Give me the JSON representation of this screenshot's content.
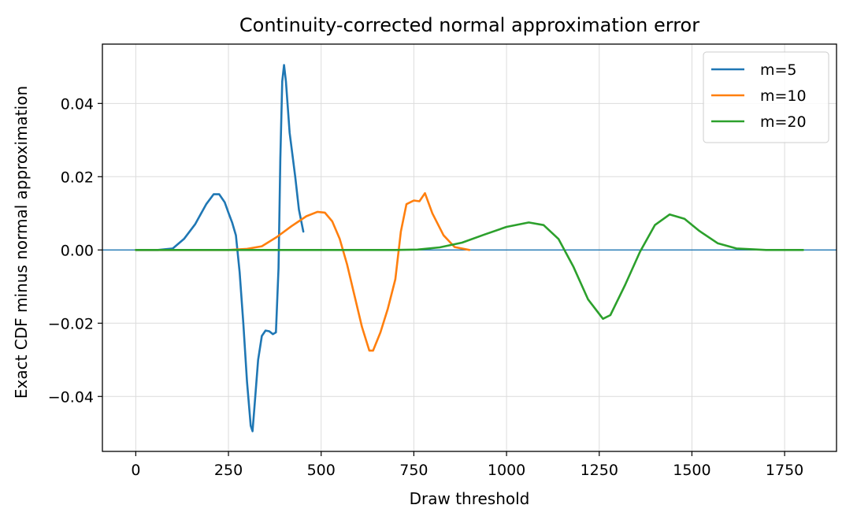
{
  "chart_data": {
    "type": "line",
    "title": "Continuity-corrected normal approximation error",
    "xlabel": "Draw threshold",
    "ylabel": "Exact CDF minus normal approximation",
    "xlim": [
      -90,
      1890
    ],
    "ylim": [
      -0.055,
      0.0562
    ],
    "xticks": [
      0,
      250,
      500,
      750,
      1000,
      1250,
      1500,
      1750
    ],
    "xtick_labels": [
      "0",
      "250",
      "500",
      "750",
      "1000",
      "1250",
      "1500",
      "1750"
    ],
    "yticks": [
      -0.04,
      -0.02,
      0.0,
      0.02,
      0.04
    ],
    "ytick_labels": [
      "−0.04",
      "−0.02",
      "0.00",
      "0.02",
      "0.04"
    ],
    "grid": true,
    "legend_position": "top-right",
    "reference_line": {
      "y": 0,
      "color": "#1f77b4"
    },
    "series": [
      {
        "name": "m=5",
        "color": "#1f77b4",
        "points": [
          [
            0,
            0
          ],
          [
            60,
            0
          ],
          [
            100,
            0.0004
          ],
          [
            130,
            0.003
          ],
          [
            160,
            0.007
          ],
          [
            190,
            0.0125
          ],
          [
            210,
            0.0152
          ],
          [
            225,
            0.0152
          ],
          [
            240,
            0.013
          ],
          [
            250,
            0.0102
          ],
          [
            260,
            0.0075
          ],
          [
            270,
            0.004
          ],
          [
            280,
            -0.006
          ],
          [
            290,
            -0.02
          ],
          [
            300,
            -0.036
          ],
          [
            310,
            -0.048
          ],
          [
            315,
            -0.0495
          ],
          [
            320,
            -0.043
          ],
          [
            330,
            -0.03
          ],
          [
            340,
            -0.0235
          ],
          [
            350,
            -0.022
          ],
          [
            360,
            -0.0222
          ],
          [
            370,
            -0.023
          ],
          [
            378,
            -0.0225
          ],
          [
            385,
            -0.005
          ],
          [
            390,
            0.025
          ],
          [
            395,
            0.046
          ],
          [
            400,
            0.0505
          ],
          [
            405,
            0.046
          ],
          [
            415,
            0.032
          ],
          [
            430,
            0.02
          ],
          [
            440,
            0.011
          ],
          [
            452,
            0.005
          ]
        ]
      },
      {
        "name": "m=10",
        "color": "#ff7f0e",
        "points": [
          [
            0,
            0
          ],
          [
            250,
            0
          ],
          [
            300,
            0.0003
          ],
          [
            340,
            0.001
          ],
          [
            380,
            0.0035
          ],
          [
            420,
            0.0065
          ],
          [
            460,
            0.0092
          ],
          [
            490,
            0.0104
          ],
          [
            510,
            0.0102
          ],
          [
            530,
            0.0078
          ],
          [
            550,
            0.003
          ],
          [
            570,
            -0.004
          ],
          [
            590,
            -0.0125
          ],
          [
            610,
            -0.021
          ],
          [
            630,
            -0.0275
          ],
          [
            640,
            -0.0275
          ],
          [
            660,
            -0.0225
          ],
          [
            680,
            -0.016
          ],
          [
            700,
            -0.008
          ],
          [
            715,
            0.005
          ],
          [
            730,
            0.0125
          ],
          [
            750,
            0.0135
          ],
          [
            765,
            0.0133
          ],
          [
            780,
            0.0155
          ],
          [
            800,
            0.01
          ],
          [
            830,
            0.004
          ],
          [
            860,
            0.0008
          ],
          [
            900,
            0
          ]
        ]
      },
      {
        "name": "m=20",
        "color": "#2ca02c",
        "points": [
          [
            0,
            0
          ],
          [
            700,
            0
          ],
          [
            760,
            0.0001
          ],
          [
            820,
            0.0007
          ],
          [
            880,
            0.002
          ],
          [
            940,
            0.0042
          ],
          [
            1000,
            0.0063
          ],
          [
            1060,
            0.0075
          ],
          [
            1100,
            0.0068
          ],
          [
            1140,
            0.003
          ],
          [
            1180,
            -0.0045
          ],
          [
            1220,
            -0.0135
          ],
          [
            1260,
            -0.0188
          ],
          [
            1280,
            -0.0178
          ],
          [
            1320,
            -0.0095
          ],
          [
            1360,
            -0.0005
          ],
          [
            1400,
            0.0068
          ],
          [
            1440,
            0.0097
          ],
          [
            1480,
            0.0085
          ],
          [
            1520,
            0.0052
          ],
          [
            1570,
            0.0018
          ],
          [
            1620,
            0.0004
          ],
          [
            1700,
            0
          ],
          [
            1800,
            0
          ]
        ]
      }
    ]
  }
}
